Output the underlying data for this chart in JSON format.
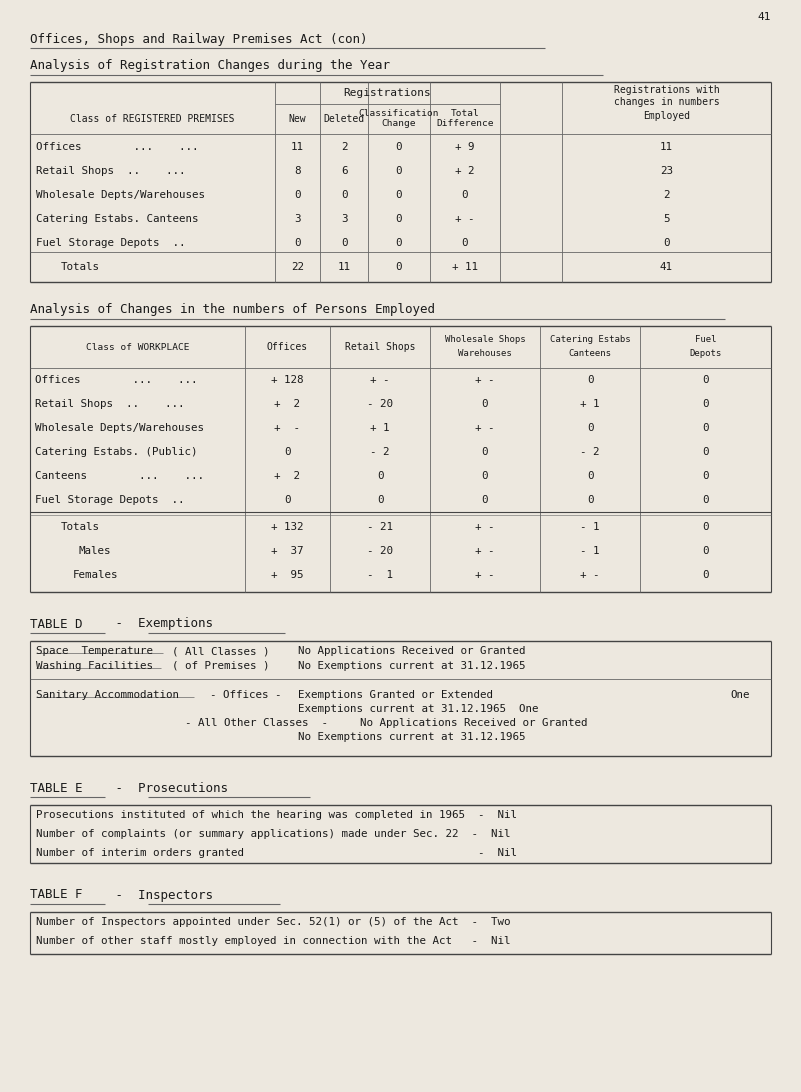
{
  "page_num": "41",
  "main_title": "Offices, Shops and Railway Premises Act (con)",
  "bg_color": "#ede8df",
  "text_color": "#1a1a1a",
  "section1_title": "Analysis of Registration Changes during the Year",
  "table1_rows": [
    [
      "Offices        ...    ...",
      "11",
      "2",
      "0",
      "+ 9",
      "11"
    ],
    [
      "Retail Shops  ..    ...",
      "8",
      "6",
      "0",
      "+ 2",
      "23"
    ],
    [
      "Wholesale Depts/Warehouses",
      "0",
      "0",
      "0",
      "0",
      "2"
    ],
    [
      "Catering Estabs. Canteens",
      "3",
      "3",
      "0",
      "+ -",
      "5"
    ],
    [
      "Fuel Storage Depots  ..",
      "0",
      "0",
      "0",
      "0",
      "0"
    ],
    [
      "Totals",
      "22",
      "11",
      "0",
      "+ 11",
      "41"
    ]
  ],
  "section2_title": "Analysis of Changes in the numbers of Persons Employed",
  "table2_rows": [
    [
      "Offices        ...    ...",
      "+ 128",
      "+ -",
      "+ -",
      "0",
      "0"
    ],
    [
      "Retail Shops  ..    ...",
      "+  2",
      "- 20",
      "0",
      "+ 1",
      "0"
    ],
    [
      "Wholesale Depts/Warehouses",
      "+  -",
      "+ 1",
      "+ -",
      "0",
      "0"
    ],
    [
      "Catering Estabs. (Public)",
      "0",
      "- 2",
      "0",
      "- 2",
      "0"
    ],
    [
      "Canteens        ...    ...",
      "+  2",
      "0",
      "0",
      "0",
      "0"
    ],
    [
      "Fuel Storage Depots  ..",
      "0",
      "0",
      "0",
      "0",
      "0"
    ],
    [
      "Totals",
      "+ 132",
      "- 21",
      "+ -",
      "- 1",
      "0"
    ],
    [
      "Males",
      "+  37",
      "- 20",
      "+ -",
      "- 1",
      "0"
    ],
    [
      "Females",
      "+  95",
      "-  1",
      "+ -",
      "+ -",
      "0"
    ]
  ],
  "tableD_title": "TABLE D  -  Exemptions",
  "tableE_title": "TABLE E  -  Prosecutions",
  "tableE_rows": [
    "Prosecutions instituted of which the hearing was completed in 1965  -  Nil",
    "Number of complaints (or summary applications) made under Sec. 22  -  Nil",
    "Number of interim orders granted                                    -  Nil"
  ],
  "tableF_title": "TABLE F  -  Inspectors",
  "tableF_rows": [
    "Number of Inspectors appointed under Sec. 52(1) or (5) of the Act  -  Two",
    "Number of other staff mostly employed in connection with the Act   -  Nil"
  ]
}
